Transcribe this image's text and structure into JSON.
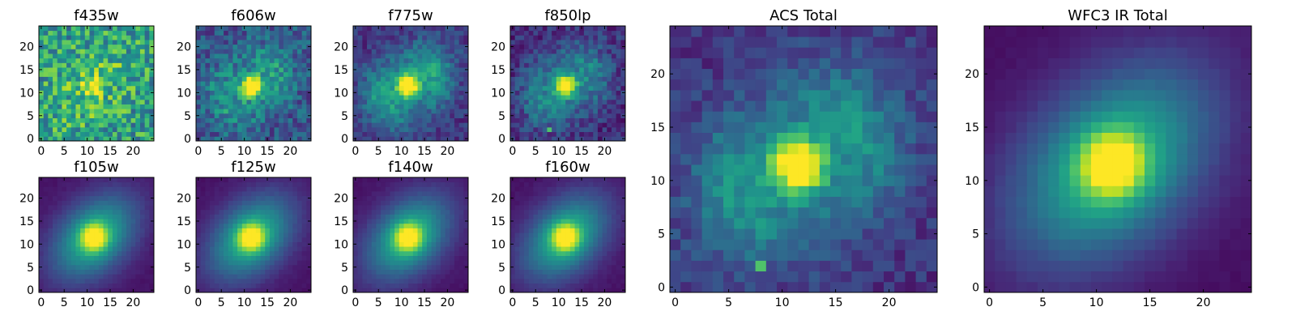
{
  "chart_data": {
    "type": "heatmap",
    "colormap": "viridis",
    "grid_size": 25,
    "grid": false,
    "panels": [
      {
        "title": "f435w",
        "noise": 0.85,
        "peak_amp": 0.55,
        "background": 0.55,
        "peak_sigma": 1.3,
        "extended_amp": 0.15,
        "ring_amp": 0.0,
        "spot": null,
        "x_ticks": [
          0,
          5,
          10,
          15,
          20
        ],
        "y_ticks": [
          0,
          5,
          10,
          15,
          20
        ],
        "xlim": [
          0,
          24
        ],
        "ylim": [
          0,
          24
        ]
      },
      {
        "title": "f606w",
        "noise": 0.55,
        "peak_amp": 0.75,
        "background": 0.25,
        "peak_sigma": 1.5,
        "extended_amp": 0.25,
        "ring_amp": 0.12,
        "spot": null,
        "x_ticks": [
          0,
          5,
          10,
          15,
          20
        ],
        "y_ticks": [
          0,
          5,
          10,
          15,
          20
        ],
        "xlim": [
          0,
          24
        ],
        "ylim": [
          0,
          24
        ]
      },
      {
        "title": "f775w",
        "noise": 0.35,
        "peak_amp": 0.8,
        "background": 0.15,
        "peak_sigma": 1.6,
        "extended_amp": 0.35,
        "ring_amp": 0.2,
        "spot": null,
        "x_ticks": [
          0,
          5,
          10,
          15,
          20
        ],
        "y_ticks": [
          0,
          5,
          10,
          15,
          20
        ],
        "xlim": [
          0,
          24
        ],
        "ylim": [
          0,
          24
        ]
      },
      {
        "title": "f850lp",
        "noise": 0.4,
        "peak_amp": 0.8,
        "background": 0.12,
        "peak_sigma": 1.6,
        "extended_amp": 0.3,
        "ring_amp": 0.15,
        "spot": [
          8,
          2
        ],
        "x_ticks": [
          0,
          5,
          10,
          15,
          20
        ],
        "y_ticks": [
          0,
          5,
          10,
          15,
          20
        ],
        "xlim": [
          0,
          24
        ],
        "ylim": [
          0,
          24
        ]
      },
      {
        "title": "f105w",
        "noise": 0.05,
        "peak_amp": 0.6,
        "background": 0.05,
        "peak_sigma": 2.0,
        "extended_amp": 0.6,
        "ring_amp": 0.0,
        "spot": null,
        "x_ticks": [
          0,
          5,
          10,
          15,
          20
        ],
        "y_ticks": [
          0,
          5,
          10,
          15,
          20
        ],
        "xlim": [
          0,
          24
        ],
        "ylim": [
          0,
          24
        ]
      },
      {
        "title": "f125w",
        "noise": 0.05,
        "peak_amp": 0.6,
        "background": 0.05,
        "peak_sigma": 2.0,
        "extended_amp": 0.6,
        "ring_amp": 0.0,
        "spot": null,
        "x_ticks": [
          0,
          5,
          10,
          15,
          20
        ],
        "y_ticks": [
          0,
          5,
          10,
          15,
          20
        ],
        "xlim": [
          0,
          24
        ],
        "ylim": [
          0,
          24
        ]
      },
      {
        "title": "f140w",
        "noise": 0.05,
        "peak_amp": 0.6,
        "background": 0.05,
        "peak_sigma": 2.0,
        "extended_amp": 0.6,
        "ring_amp": 0.0,
        "spot": null,
        "x_ticks": [
          0,
          5,
          10,
          15,
          20
        ],
        "y_ticks": [
          0,
          5,
          10,
          15,
          20
        ],
        "xlim": [
          0,
          24
        ],
        "ylim": [
          0,
          24
        ]
      },
      {
        "title": "f160w",
        "noise": 0.05,
        "peak_amp": 0.6,
        "background": 0.05,
        "peak_sigma": 2.0,
        "extended_amp": 0.6,
        "ring_amp": 0.0,
        "spot": null,
        "x_ticks": [
          0,
          5,
          10,
          15,
          20
        ],
        "y_ticks": [
          0,
          5,
          10,
          15,
          20
        ],
        "xlim": [
          0,
          24
        ],
        "ylim": [
          0,
          24
        ]
      },
      {
        "title": "ACS Total",
        "noise": 0.3,
        "peak_amp": 0.85,
        "background": 0.15,
        "peak_sigma": 1.7,
        "extended_amp": 0.3,
        "ring_amp": 0.18,
        "spot": [
          8,
          2
        ],
        "x_ticks": [
          0,
          5,
          10,
          15,
          20
        ],
        "y_ticks": [
          0,
          5,
          10,
          15,
          20
        ],
        "xlim": [
          0,
          24
        ],
        "ylim": [
          0,
          24
        ]
      },
      {
        "title": "WFC3 IR Total",
        "noise": 0.04,
        "peak_amp": 0.6,
        "background": 0.04,
        "peak_sigma": 2.1,
        "extended_amp": 0.62,
        "ring_amp": 0.0,
        "spot": null,
        "x_ticks": [
          0,
          5,
          10,
          15,
          20
        ],
        "y_ticks": [
          0,
          5,
          10,
          15,
          20
        ],
        "xlim": [
          0,
          24
        ],
        "ylim": [
          0,
          24
        ]
      }
    ],
    "source_center": [
      11.5,
      11.5
    ]
  }
}
